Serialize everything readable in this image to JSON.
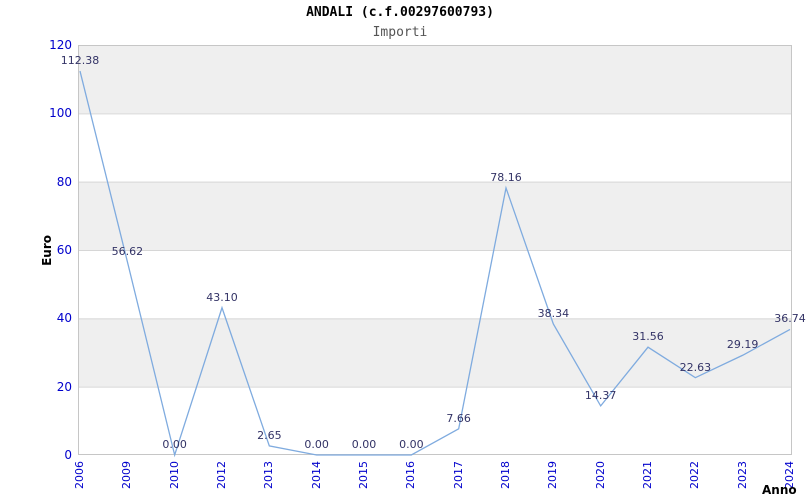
{
  "header": {
    "title": "ANDALI (c.f.00297600793)",
    "subtitle": "Importi"
  },
  "axes": {
    "y_title": "Euro",
    "x_title": "Anno"
  },
  "chart_data": {
    "type": "line",
    "title": "ANDALI (c.f.00297600793)",
    "subtitle": "Importi",
    "xlabel": "Anno",
    "ylabel": "Euro",
    "categories": [
      "2006",
      "2009",
      "2010",
      "2012",
      "2013",
      "2014",
      "2015",
      "2016",
      "2017",
      "2018",
      "2019",
      "2020",
      "2021",
      "2022",
      "2023",
      "2024"
    ],
    "values": [
      112.38,
      56.62,
      0.0,
      43.1,
      2.65,
      0.0,
      0.0,
      0.0,
      7.66,
      78.16,
      38.34,
      14.37,
      31.56,
      22.63,
      29.19,
      36.74
    ],
    "value_format": "2dp",
    "ylim": [
      0,
      120
    ],
    "yticks": [
      0,
      20,
      40,
      60,
      80,
      100,
      120
    ],
    "grid": "horizontal-bands-alternating",
    "legend": "none",
    "colors": {
      "line": "#7fabdf",
      "tick_label": "#0000cc",
      "value_label": "#333366",
      "band": "#efefef",
      "gridline": "#d6d6d6",
      "plot_border": "#c6c6c6",
      "title": "#000000",
      "subtitle": "#555555"
    }
  }
}
